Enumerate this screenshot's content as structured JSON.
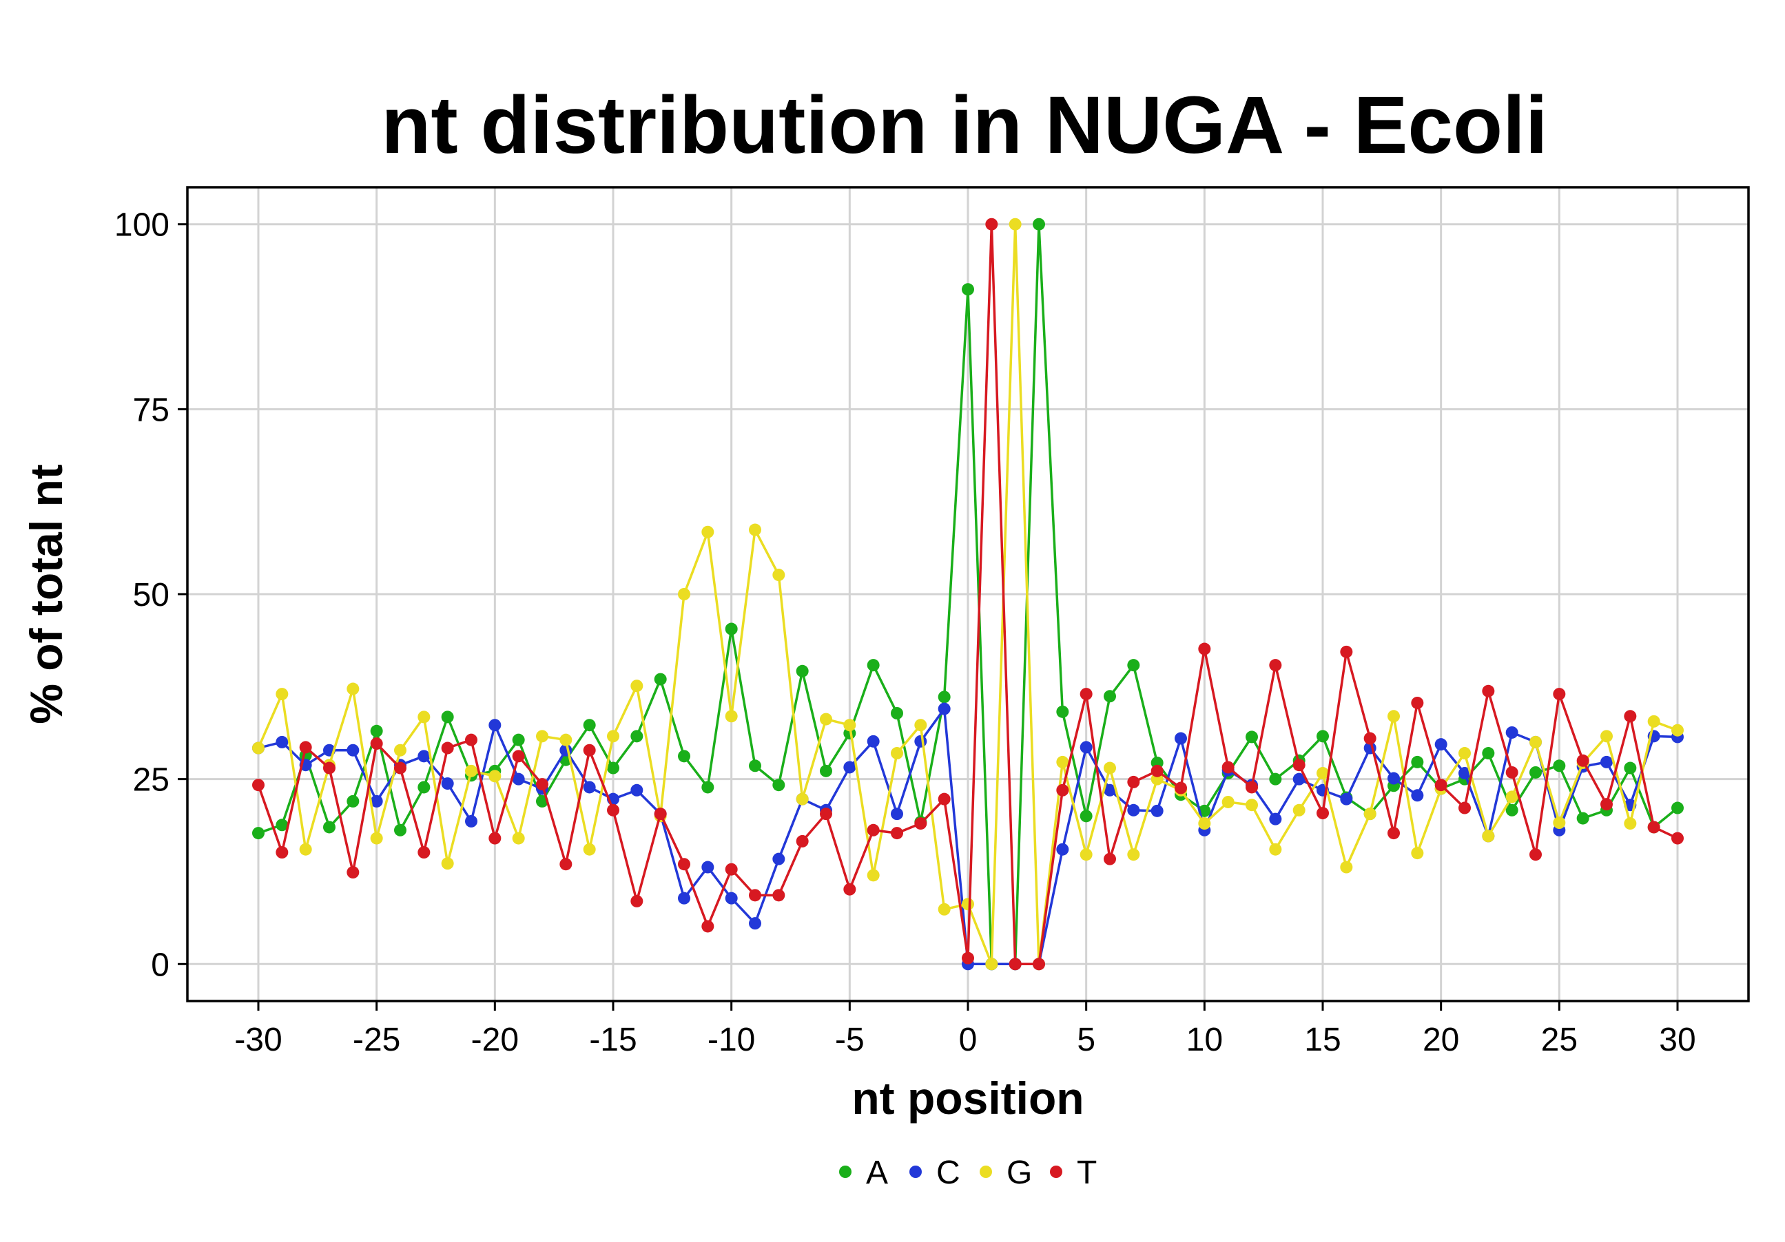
{
  "chart_data": {
    "type": "line",
    "title": "nt distribution in NUGA - Ecoli",
    "xlabel": "nt position",
    "ylabel": "% of total nt",
    "xlim": [
      -33,
      33
    ],
    "ylim": [
      -5,
      105
    ],
    "x_ticks": [
      -30,
      -25,
      -20,
      -15,
      -10,
      -5,
      0,
      5,
      10,
      15,
      20,
      25,
      30
    ],
    "x_tick_labels": [
      "-30",
      "-25",
      "-20",
      "-15",
      "-10",
      "-5",
      "0",
      "5",
      "10",
      "15",
      "20",
      "25",
      "30"
    ],
    "y_ticks": [
      0,
      25,
      50,
      75,
      100
    ],
    "y_tick_labels": [
      "0",
      "25",
      "50",
      "75",
      "100"
    ],
    "grid": true,
    "legend_position": "bottom",
    "x": [
      -30,
      -29,
      -28,
      -27,
      -26,
      -25,
      -24,
      -23,
      -22,
      -21,
      -20,
      -19,
      -18,
      -17,
      -16,
      -15,
      -14,
      -13,
      -12,
      -11,
      -10,
      -9,
      -8,
      -7,
      -6,
      -5,
      -4,
      -3,
      -2,
      -1,
      0,
      1,
      2,
      3,
      4,
      5,
      6,
      7,
      8,
      9,
      10,
      11,
      12,
      13,
      14,
      15,
      16,
      17,
      18,
      19,
      20,
      21,
      22,
      23,
      24,
      25,
      26,
      27,
      28,
      29,
      30
    ],
    "series": [
      {
        "name": "A",
        "color": "#1aaf1a",
        "values": [
          17.7,
          18.8,
          28.2,
          18.5,
          22.0,
          31.5,
          18.1,
          23.9,
          33.4,
          25.5,
          26.1,
          30.3,
          22.0,
          27.6,
          32.3,
          26.5,
          30.8,
          38.5,
          28.1,
          23.9,
          45.3,
          26.8,
          24.2,
          39.6,
          26.1,
          31.2,
          40.4,
          33.9,
          19.2,
          36.1,
          91.2,
          0,
          0,
          100,
          34.1,
          20.0,
          36.2,
          40.4,
          27.2,
          22.9,
          20.7,
          25.8,
          30.7,
          25.0,
          27.5,
          30.8,
          22.5,
          20.3,
          24.1,
          27.3,
          23.7,
          25.0,
          28.5,
          20.8,
          25.9,
          26.8,
          19.7,
          20.8,
          26.5,
          18.5,
          21.1
        ]
      },
      {
        "name": "C",
        "color": "#2238d8",
        "values": [
          29.2,
          30.0,
          26.9,
          28.9,
          28.9,
          22.0,
          26.9,
          28.1,
          24.4,
          19.3,
          32.3,
          25.0,
          23.7,
          28.9,
          23.9,
          22.3,
          23.5,
          20.3,
          8.9,
          13.1,
          8.9,
          5.5,
          14.2,
          22.3,
          20.8,
          26.6,
          30.1,
          20.3,
          30.1,
          34.5,
          0,
          0,
          0,
          0,
          15.5,
          29.3,
          23.5,
          20.8,
          20.7,
          30.5,
          18.1,
          26.2,
          24.2,
          19.6,
          25.0,
          23.5,
          22.3,
          29.2,
          25.1,
          22.8,
          29.7,
          25.8,
          17.3,
          31.3,
          30.0,
          18.1,
          26.7,
          27.3,
          21.5,
          30.8,
          30.7
        ]
      },
      {
        "name": "G",
        "color": "#ebdd22",
        "values": [
          29.2,
          36.5,
          15.5,
          26.9,
          37.2,
          17.0,
          28.9,
          33.4,
          13.6,
          26.1,
          25.4,
          17.0,
          30.8,
          30.3,
          15.5,
          30.8,
          37.6,
          20.0,
          50.0,
          58.4,
          33.5,
          58.7,
          52.6,
          22.3,
          33.1,
          32.3,
          12.0,
          28.5,
          32.3,
          7.4,
          8.1,
          0,
          100,
          0,
          27.3,
          14.8,
          26.5,
          14.8,
          25.0,
          23.5,
          19.0,
          21.9,
          21.5,
          15.5,
          20.8,
          25.8,
          13.1,
          20.3,
          33.5,
          15.0,
          23.7,
          28.5,
          17.3,
          22.6,
          30.0,
          19.1,
          27.2,
          30.8,
          19.0,
          32.8,
          31.6
        ]
      },
      {
        "name": "T",
        "color": "#d71921",
        "values": [
          24.2,
          15.1,
          29.3,
          26.5,
          12.4,
          29.8,
          26.5,
          15.1,
          29.2,
          30.3,
          17.0,
          28.1,
          24.3,
          13.5,
          28.9,
          20.8,
          8.5,
          20.3,
          13.5,
          5.1,
          12.8,
          9.3,
          9.3,
          16.6,
          20.3,
          10.1,
          18.1,
          17.7,
          19.0,
          22.3,
          0.8,
          100,
          0,
          0,
          23.5,
          36.5,
          14.2,
          24.6,
          26.1,
          23.8,
          42.6,
          26.6,
          23.9,
          40.4,
          26.9,
          20.4,
          42.2,
          30.5,
          17.7,
          35.3,
          24.2,
          21.1,
          36.9,
          25.9,
          14.8,
          36.5,
          27.5,
          21.6,
          33.5,
          18.5,
          17.0
        ]
      }
    ]
  }
}
